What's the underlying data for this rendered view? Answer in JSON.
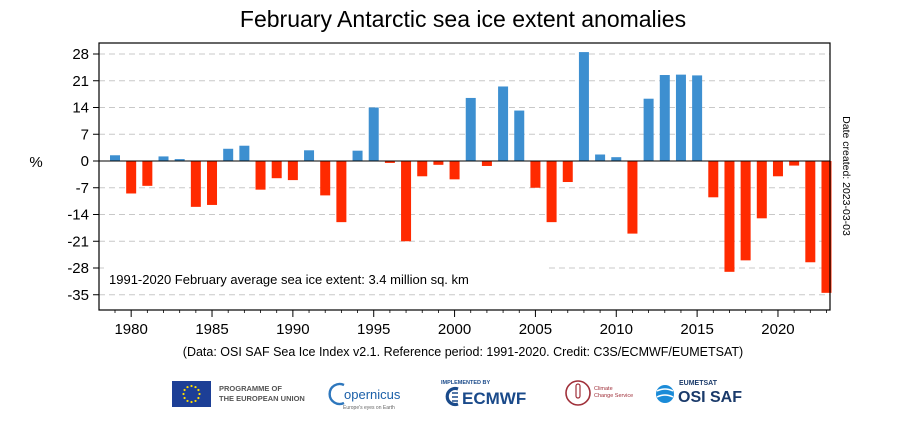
{
  "chart_data": {
    "type": "bar",
    "title": "February Antarctic sea ice extent anomalies",
    "ylabel": "%",
    "xlabel": "",
    "ylim": [
      -37,
      31
    ],
    "xlim": [
      1978,
      2024
    ],
    "yticks": [
      28,
      21,
      14,
      7,
      0,
      -7,
      -14,
      -21,
      -28,
      -35
    ],
    "ytick_labels": [
      "28",
      "21",
      "14",
      "7",
      "0",
      "-7",
      "-14",
      "-21",
      "-28",
      "-35"
    ],
    "xticks": [
      1980,
      1985,
      1990,
      1995,
      2000,
      2005,
      2010,
      2015,
      2020
    ],
    "xtick_labels": [
      "1980",
      "1985",
      "1990",
      "1995",
      "2000",
      "2005",
      "2010",
      "2015",
      "2020"
    ],
    "grid": "horizontal dashed",
    "colors": {
      "positive": "#3d8fd0",
      "negative": "#ff2a00"
    },
    "x": [
      1979,
      1980,
      1981,
      1982,
      1983,
      1984,
      1985,
      1986,
      1987,
      1988,
      1989,
      1990,
      1991,
      1992,
      1993,
      1994,
      1995,
      1996,
      1997,
      1998,
      1999,
      2000,
      2001,
      2002,
      2003,
      2004,
      2005,
      2006,
      2007,
      2008,
      2009,
      2010,
      2011,
      2012,
      2013,
      2014,
      2015,
      2016,
      2017,
      2018,
      2019,
      2020,
      2021,
      2022,
      2023
    ],
    "values": [
      1.5,
      -8.5,
      -6.5,
      1.2,
      0.5,
      -12,
      -11.5,
      3.2,
      4.0,
      -7.5,
      -4.5,
      -5.0,
      2.8,
      -9.0,
      -16,
      2.7,
      14.0,
      -0.5,
      -21,
      -4.0,
      -1.0,
      -4.8,
      16.5,
      -1.3,
      19.5,
      13.2,
      -7.0,
      -16,
      -5.5,
      28.5,
      1.7,
      1.0,
      -19,
      16.3,
      22.5,
      22.6,
      22.4,
      -9.5,
      -29,
      -26,
      -15,
      -4.0,
      -1.2,
      -26.5,
      -34.5
    ],
    "annotation": "1991-2020 February average sea ice extent: 3.4 million sq. km"
  },
  "footer": {
    "credit": "(Data: OSI SAF Sea Ice Index v2.1.  Reference period: 1991-2020.  Credit: C3S/ECMWF/EUMETSAT)",
    "side_label": "Date created: 2023-03-03"
  },
  "logos": {
    "eu_line1": "PROGRAMME OF",
    "eu_line2": "THE EUROPEAN UNION",
    "copernicus": "opernicus",
    "copernicus_sub": "Europe's eyes on Earth",
    "ecmwf_top": "IMPLEMENTED BY",
    "ecmwf": "ECMWF",
    "c3s_1": "Climate",
    "c3s_2": "Change Service",
    "eumetsat": "EUMETSAT",
    "osisaf": "OSI SAF"
  }
}
